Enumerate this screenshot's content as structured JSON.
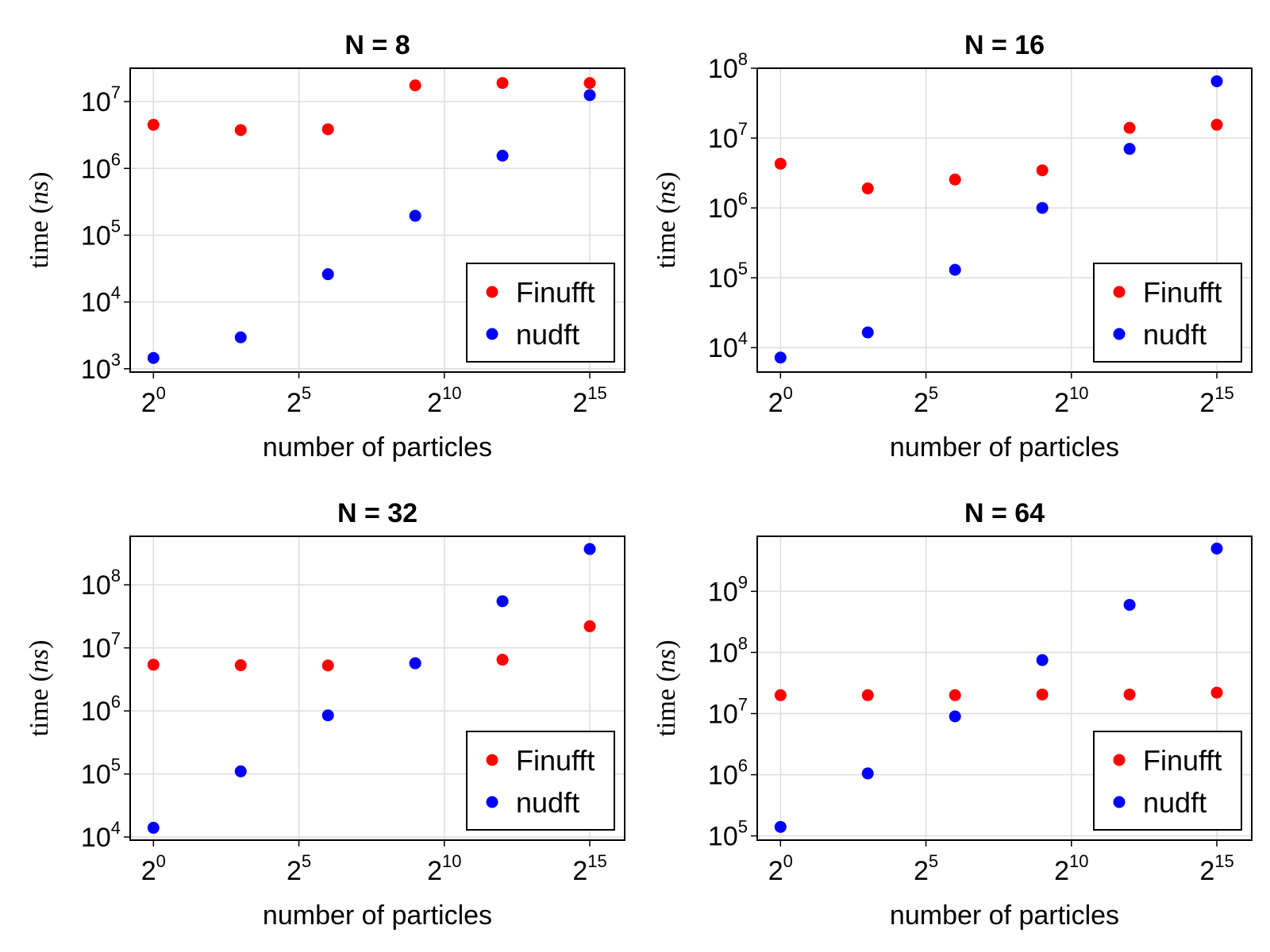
{
  "chart_data": [
    {
      "type": "scatter",
      "title": "N = 8",
      "xlabel": "number of particles",
      "ylabel": "time",
      "ylabel_unit": "ns",
      "xscale": "log2",
      "yscale": "log10",
      "grid": true,
      "legend_position": "bottom-right",
      "xlim_exp": [
        -0.8,
        16.2
      ],
      "ylim_exp": [
        2.95,
        7.5
      ],
      "x_ticks": [
        {
          "base": "2",
          "exp": "0"
        },
        {
          "base": "2",
          "exp": "5"
        },
        {
          "base": "2",
          "exp": "10"
        },
        {
          "base": "2",
          "exp": "15"
        }
      ],
      "y_ticks": [
        {
          "base": "10",
          "exp": "3"
        },
        {
          "base": "10",
          "exp": "4"
        },
        {
          "base": "10",
          "exp": "5"
        },
        {
          "base": "10",
          "exp": "6"
        },
        {
          "base": "10",
          "exp": "7"
        }
      ],
      "x": [
        1,
        8,
        64,
        512,
        4096,
        32768
      ],
      "series": [
        {
          "name": "Finufft",
          "color": "#ff0000",
          "values": [
            4500000,
            3750000,
            3850000,
            17500000,
            19000000,
            19000000
          ]
        },
        {
          "name": "nudft",
          "color": "#0000ff",
          "values": [
            1450,
            2950,
            26000,
            195000,
            1550000,
            12500000
          ]
        }
      ]
    },
    {
      "type": "scatter",
      "title": "N = 16",
      "xlabel": "number of particles",
      "ylabel": "time",
      "ylabel_unit": "ns",
      "xscale": "log2",
      "yscale": "log10",
      "grid": true,
      "legend_position": "bottom-right",
      "xlim_exp": [
        -0.8,
        16.2
      ],
      "ylim_exp": [
        3.65,
        8.0
      ],
      "x_ticks": [
        {
          "base": "2",
          "exp": "0"
        },
        {
          "base": "2",
          "exp": "5"
        },
        {
          "base": "2",
          "exp": "10"
        },
        {
          "base": "2",
          "exp": "15"
        }
      ],
      "y_ticks": [
        {
          "base": "10",
          "exp": "4"
        },
        {
          "base": "10",
          "exp": "5"
        },
        {
          "base": "10",
          "exp": "6"
        },
        {
          "base": "10",
          "exp": "7"
        },
        {
          "base": "10",
          "exp": "8"
        }
      ],
      "x": [
        1,
        8,
        64,
        512,
        4096,
        32768
      ],
      "series": [
        {
          "name": "Finufft",
          "color": "#ff0000",
          "values": [
            4300000,
            1900000,
            2550000,
            3450000,
            14000000,
            15500000
          ]
        },
        {
          "name": "nudft",
          "color": "#0000ff",
          "values": [
            7200,
            16500,
            130000,
            1000000,
            7000000,
            65000000
          ]
        }
      ]
    },
    {
      "type": "scatter",
      "title": "N = 32",
      "xlabel": "number of particles",
      "ylabel": "time",
      "ylabel_unit": "ns",
      "xscale": "log2",
      "yscale": "log10",
      "grid": true,
      "legend_position": "bottom-right",
      "xlim_exp": [
        -0.8,
        16.2
      ],
      "ylim_exp": [
        3.95,
        8.77
      ],
      "x_ticks": [
        {
          "base": "2",
          "exp": "0"
        },
        {
          "base": "2",
          "exp": "5"
        },
        {
          "base": "2",
          "exp": "10"
        },
        {
          "base": "2",
          "exp": "15"
        }
      ],
      "y_ticks": [
        {
          "base": "10",
          "exp": "4"
        },
        {
          "base": "10",
          "exp": "5"
        },
        {
          "base": "10",
          "exp": "6"
        },
        {
          "base": "10",
          "exp": "7"
        },
        {
          "base": "10",
          "exp": "8"
        }
      ],
      "x": [
        1,
        8,
        64,
        512,
        4096,
        32768
      ],
      "series": [
        {
          "name": "Finufft",
          "color": "#ff0000",
          "values": [
            5400000,
            5300000,
            5250000,
            5700000,
            6500000,
            22000000
          ]
        },
        {
          "name": "nudft",
          "color": "#0000ff",
          "values": [
            14000,
            110000,
            850000,
            5700000,
            55000000,
            370000000
          ]
        }
      ]
    },
    {
      "type": "scatter",
      "title": "N = 64",
      "xlabel": "number of particles",
      "ylabel": "time",
      "ylabel_unit": "ns",
      "xscale": "log2",
      "yscale": "log10",
      "grid": true,
      "legend_position": "bottom-right",
      "xlim_exp": [
        4.9,
        9.9
      ],
      "ylim_exp": [
        4.9,
        9.9
      ],
      "x_ticks": [
        {
          "base": "2",
          "exp": "0"
        },
        {
          "base": "2",
          "exp": "5"
        },
        {
          "base": "2",
          "exp": "10"
        },
        {
          "base": "2",
          "exp": "15"
        }
      ],
      "y_ticks": [
        {
          "base": "10",
          "exp": "5"
        },
        {
          "base": "10",
          "exp": "6"
        },
        {
          "base": "10",
          "exp": "7"
        },
        {
          "base": "10",
          "exp": "8"
        },
        {
          "base": "10",
          "exp": "9"
        }
      ],
      "x": [
        1,
        8,
        64,
        512,
        4096,
        32768
      ],
      "series": [
        {
          "name": "Finufft",
          "color": "#ff0000",
          "values": [
            20000000,
            20000000,
            20000000,
            20500000,
            20500000,
            22000000
          ]
        },
        {
          "name": "nudft",
          "color": "#0000ff",
          "values": [
            140000,
            1050000,
            9000000,
            75000000,
            600000000,
            5000000000
          ]
        }
      ]
    }
  ]
}
